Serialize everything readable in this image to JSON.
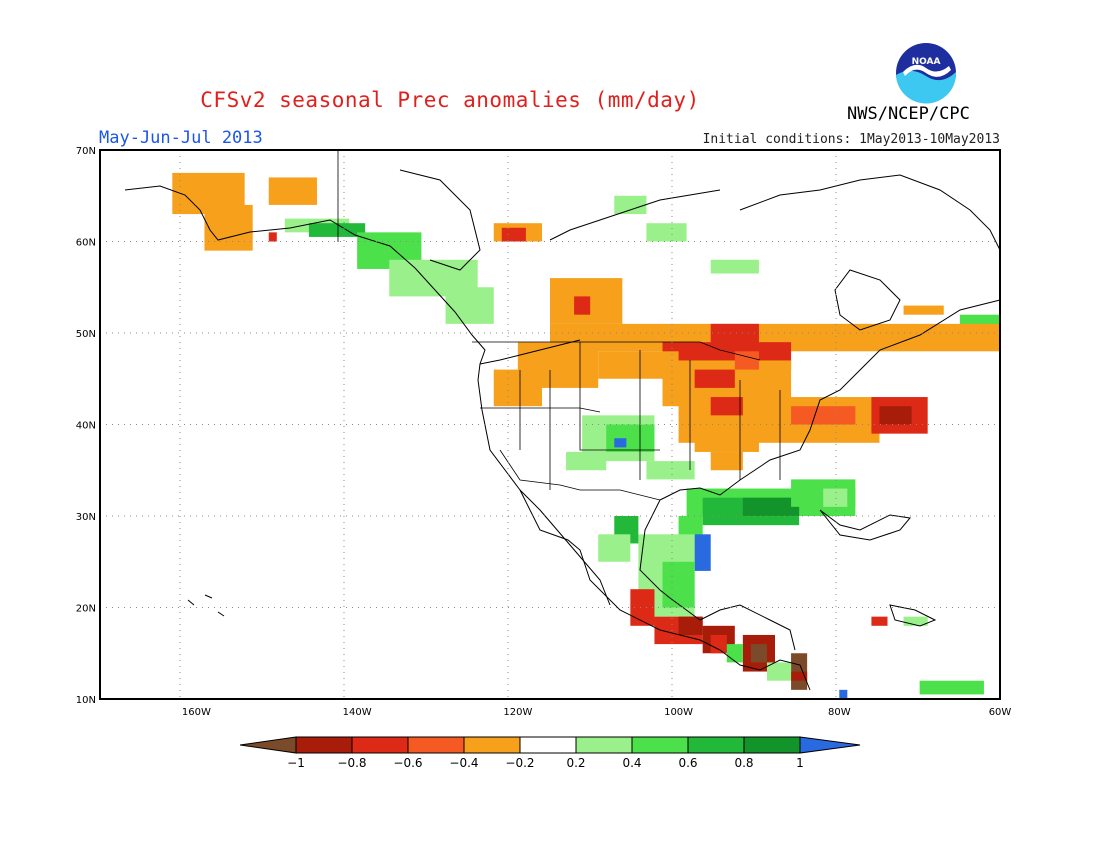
{
  "header": {
    "title": "CFSv2 seasonal Prec anomalies (mm/day)",
    "period": "May-Jun-Jul 2013",
    "initial_conditions": "Initial conditions: 1May2013-10May2013",
    "agency": "NWS/NCEP/CPC",
    "logo_text": "NOAA"
  },
  "map": {
    "lon_range": [
      -172,
      -60
    ],
    "lat_range": [
      10,
      70
    ],
    "lat_labels": [
      "70N",
      "60N",
      "50N",
      "40N",
      "30N",
      "20N",
      "10N"
    ],
    "lon_labels": [
      "160W",
      "140W",
      "120W",
      "100W",
      "80W",
      "60W"
    ],
    "legend_labels": [
      "-1",
      "-0.8",
      "-0.6",
      "-0.4",
      "-0.2",
      "0.2",
      "0.4",
      "0.6",
      "0.8",
      "1"
    ]
  },
  "colors": {
    "below_1": "#7a4a2a",
    "m08_m1": "#a81c0a",
    "m06_m08": "#dc2a16",
    "m04_m06": "#f45a22",
    "m02_m04": "#f6a01c",
    "p02_p04": "#9af08a",
    "p04_p06": "#4ce04a",
    "p06_p08": "#22b83a",
    "p08_p1": "#12942a",
    "above_1": "#2a6ae0",
    "title": "#e0201c",
    "period": "#1a56e8"
  }
}
